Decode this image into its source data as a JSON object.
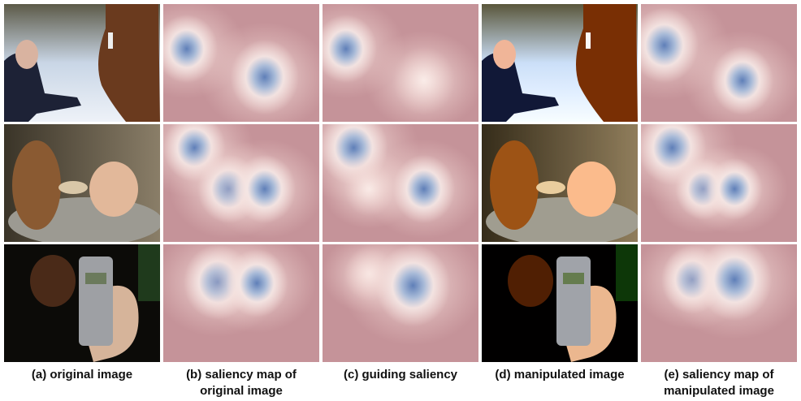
{
  "captions": [
    [
      "(a) original image"
    ],
    [
      "(b) saliency map of",
      "original image"
    ],
    [
      "(c) guiding saliency"
    ],
    [
      "(d) manipulated image"
    ],
    [
      "(e) saliency map of",
      "manipulated image"
    ]
  ]
}
